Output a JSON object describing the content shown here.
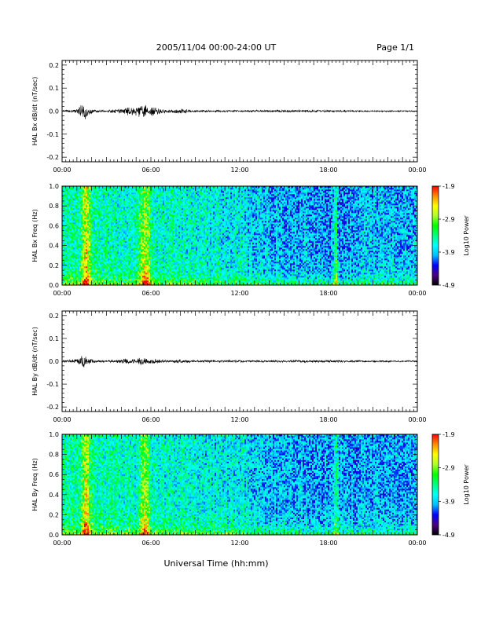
{
  "header": {
    "title": "2005/11/04  00:00-24:00 UT",
    "page": "Page 1/1"
  },
  "footer": {
    "xlabel": "Universal Time (hh:mm)"
  },
  "colorbar": {
    "label": "Log10 Power",
    "tick_labels": [
      "-1.9",
      "-2.9",
      "-3.9",
      "-4.9"
    ],
    "range": [
      -4.9,
      -1.9
    ],
    "colormap": [
      "#000000",
      "#4b0082",
      "#0000ff",
      "#00bfff",
      "#00ffff",
      "#00ff7f",
      "#00ff00",
      "#adff2f",
      "#ffff00",
      "#ff8c00",
      "#ff0000"
    ]
  },
  "chart_data": [
    {
      "type": "line",
      "ylabel": "HAL Bx dB/dt (nT/sec)",
      "x_tick_labels": [
        "00:00",
        "06:00",
        "12:00",
        "18:00",
        "00:00"
      ],
      "y_tick_labels": [
        "0.2",
        "0.1",
        "0.0",
        "-0.1",
        "-0.2"
      ],
      "xlim_hours": [
        0,
        24
      ],
      "ylim": [
        -0.22,
        0.22
      ],
      "envelope": {
        "hours": [
          0.0,
          1.0,
          1.5,
          1.8,
          2.2,
          3.0,
          4.5,
          5.5,
          6.0,
          7.0,
          7.5,
          8.0,
          9.0,
          12.0,
          15.0,
          18.0,
          20.0,
          24.0
        ],
        "amplitude_nT_per_sec": [
          0.004,
          0.01,
          0.045,
          0.02,
          0.008,
          0.004,
          0.02,
          0.03,
          0.025,
          0.008,
          0.008,
          0.012,
          0.006,
          0.005,
          0.006,
          0.005,
          0.004,
          0.003
        ]
      }
    },
    {
      "type": "heatmap",
      "ylabel": "HAL Bx Freq (Hz)",
      "x_tick_labels": [
        "00:00",
        "06:00",
        "12:00",
        "18:00",
        "00:00"
      ],
      "y_tick_labels": [
        "1.0",
        "0.8",
        "0.6",
        "0.4",
        "0.2",
        "0.0"
      ],
      "xlim_hours": [
        0,
        24
      ],
      "ylim_hz": [
        0,
        1.0
      ],
      "zlim_log10_power": [
        -4.9,
        -1.9
      ],
      "features": [
        {
          "center_hour": 1.6,
          "width_hours": 0.6,
          "max_log10_power": -2.0
        },
        {
          "center_hour": 5.6,
          "width_hours": 0.7,
          "max_log10_power": -2.2
        },
        {
          "center_hour": 18.5,
          "width_hours": 0.3,
          "max_log10_power": -3.0
        }
      ]
    },
    {
      "type": "line",
      "ylabel": "HAL By dB/dt (nT/sec)",
      "x_tick_labels": [
        "00:00",
        "06:00",
        "12:00",
        "18:00",
        "00:00"
      ],
      "y_tick_labels": [
        "0.2",
        "0.1",
        "0.0",
        "-0.1",
        "-0.2"
      ],
      "xlim_hours": [
        0,
        24
      ],
      "ylim": [
        -0.22,
        0.22
      ],
      "envelope": {
        "hours": [
          0.0,
          1.0,
          1.5,
          1.8,
          2.2,
          3.0,
          4.5,
          5.5,
          6.0,
          7.0,
          7.5,
          8.0,
          9.0,
          12.0,
          15.0,
          18.0,
          20.0,
          24.0
        ],
        "amplitude_nT_per_sec": [
          0.004,
          0.012,
          0.04,
          0.02,
          0.008,
          0.004,
          0.015,
          0.018,
          0.015,
          0.006,
          0.006,
          0.01,
          0.006,
          0.006,
          0.006,
          0.006,
          0.005,
          0.004
        ]
      }
    },
    {
      "type": "heatmap",
      "ylabel": "HAL By Freq (Hz)",
      "x_tick_labels": [
        "00:00",
        "06:00",
        "12:00",
        "18:00",
        "00:00"
      ],
      "y_tick_labels": [
        "1.0",
        "0.8",
        "0.6",
        "0.4",
        "0.2",
        "0.0"
      ],
      "xlim_hours": [
        0,
        24
      ],
      "ylim_hz": [
        0,
        1.0
      ],
      "zlim_log10_power": [
        -4.9,
        -1.9
      ],
      "features": [
        {
          "center_hour": 1.6,
          "width_hours": 0.6,
          "max_log10_power": -2.1
        },
        {
          "center_hour": 5.6,
          "width_hours": 0.7,
          "max_log10_power": -2.3
        },
        {
          "center_hour": 18.5,
          "width_hours": 0.3,
          "max_log10_power": -3.1
        }
      ]
    }
  ]
}
